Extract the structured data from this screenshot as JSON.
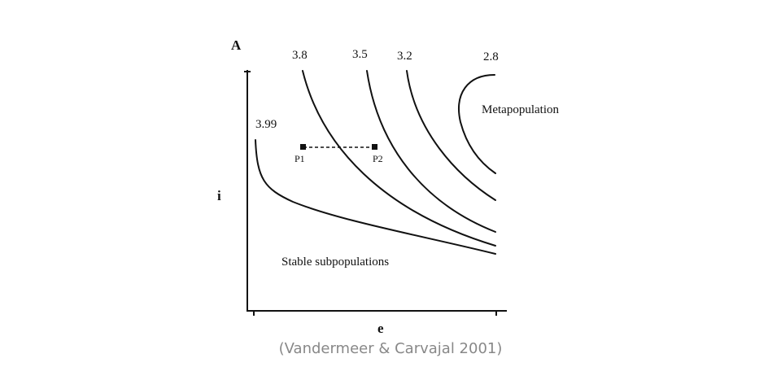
{
  "chart_data": {
    "type": "line",
    "panel_label": "A",
    "xlabel": "e",
    "ylabel": "i",
    "grid": false,
    "legend": "none",
    "series": [
      {
        "name": "3.99",
        "x": [
          0.0,
          0.03,
          0.15,
          0.4,
          0.7,
          1.0
        ],
        "y": [
          0.71,
          0.55,
          0.44,
          0.33,
          0.23,
          0.23
        ]
      },
      {
        "name": "3.8",
        "x": [
          0.2,
          0.3,
          0.45,
          0.65,
          1.0
        ],
        "y": [
          1.0,
          0.78,
          0.55,
          0.38,
          0.27
        ]
      },
      {
        "name": "3.5",
        "x": [
          0.47,
          0.55,
          0.68,
          1.0
        ],
        "y": [
          1.0,
          0.77,
          0.55,
          0.3
        ]
      },
      {
        "name": "3.2",
        "x": [
          0.63,
          0.7,
          0.82,
          1.0
        ],
        "y": [
          1.0,
          0.8,
          0.6,
          0.38
        ]
      },
      {
        "name": "2.8",
        "x": [
          1.0,
          0.83,
          0.78,
          0.83,
          1.0
        ],
        "y": [
          0.98,
          0.9,
          0.75,
          0.58,
          0.55
        ]
      }
    ],
    "points": [
      {
        "label": "P1",
        "x": 0.2,
        "y": 0.69
      },
      {
        "label": "P2",
        "x": 0.5,
        "y": 0.69
      }
    ],
    "regions": [
      "Metapopulation",
      "Stable subpopulations"
    ]
  },
  "caption": "(Vandermeer & Carvajal 2001)"
}
